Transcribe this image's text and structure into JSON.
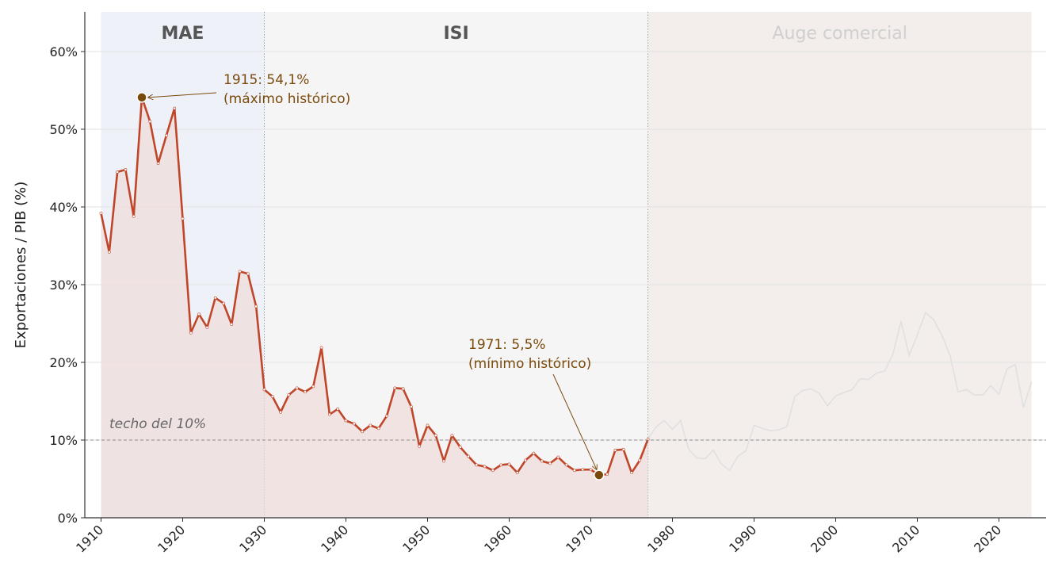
{
  "chart_data": {
    "type": "line",
    "ylabel": "Exportaciones / PIB (%)",
    "xlabel": "",
    "xlim": [
      1908,
      2026
    ],
    "ylim": [
      0,
      65
    ],
    "x_ticks": [
      1910,
      1920,
      1930,
      1940,
      1950,
      1960,
      1970,
      1980,
      1990,
      2000,
      2010,
      2020
    ],
    "y_ticks": [
      0,
      10,
      20,
      30,
      40,
      50,
      60
    ],
    "y_tick_labels": [
      "0%",
      "10%",
      "20%",
      "30%",
      "40%",
      "50%",
      "60%"
    ],
    "grid": true,
    "periods": [
      {
        "label": "MAE",
        "start": 1910,
        "end": 1930,
        "color": "#e8eef5",
        "label_color": "#555555"
      },
      {
        "label": "ISI",
        "start": 1930,
        "end": 1977,
        "color": "#f2f2f2",
        "label_color": "#555555"
      },
      {
        "label": "Auge comercial",
        "start": 1977,
        "end": 2024,
        "color": "#efe8e4",
        "label_color": "#cfcfcf"
      }
    ],
    "reference_line": {
      "y": 10,
      "label": "techo del 10%"
    },
    "annotations": [
      {
        "x": 1915,
        "y": 54.1,
        "line1": "1915: 54,1%",
        "line2": "(máximo histórico)"
      },
      {
        "x": 1971,
        "y": 5.5,
        "line1": "1971: 5,5%",
        "line2": "(mínimo histórico)"
      }
    ],
    "colors": {
      "main_line": "#c0462a",
      "fill": "#f0dcd8",
      "muted_line": "#e0e0e0",
      "annot": "#7a4a0c",
      "marker": "#7a4a0c"
    },
    "series": [
      {
        "x": [
          1910,
          1911,
          1912,
          1913,
          1914,
          1915,
          1916,
          1917,
          1918,
          1919,
          1920,
          1921,
          1922,
          1923,
          1924,
          1925,
          1926,
          1927,
          1928,
          1929,
          1930,
          1931,
          1932,
          1933,
          1934,
          1935,
          1936,
          1937,
          1938,
          1939,
          1940,
          1941,
          1942,
          1943,
          1944,
          1945,
          1946,
          1947,
          1948,
          1949,
          1950,
          1951,
          1952,
          1953,
          1954,
          1955,
          1956,
          1957,
          1958,
          1959,
          1960,
          1961,
          1962,
          1963,
          1964,
          1965,
          1966,
          1967,
          1968,
          1969,
          1970,
          1971,
          1972,
          1973,
          1974,
          1975,
          1976,
          1977
        ],
        "y": [
          39.2,
          34.2,
          44.5,
          44.8,
          38.8,
          54.1,
          51.0,
          45.6,
          49.2,
          52.7,
          38.5,
          23.8,
          26.2,
          24.5,
          28.3,
          27.6,
          24.9,
          31.7,
          31.4,
          27.2,
          16.5,
          15.6,
          13.6,
          15.8,
          16.7,
          16.2,
          16.9,
          21.9,
          13.3,
          14.0,
          12.5,
          12.1,
          11.1,
          11.9,
          11.5,
          13.1,
          16.7,
          16.6,
          14.3,
          9.2,
          11.9,
          10.6,
          7.3,
          10.6,
          9.1,
          7.9,
          6.8,
          6.6,
          6.1,
          6.8,
          6.9,
          5.8,
          7.4,
          8.3,
          7.3,
          7.0,
          7.8,
          6.8,
          6.1,
          6.2,
          6.2,
          5.5,
          5.6,
          8.7,
          8.8,
          5.8,
          7.4,
          10.1
        ]
      },
      {
        "x": [
          1977,
          1978,
          1979,
          1980,
          1981,
          1982,
          1983,
          1984,
          1985,
          1986,
          1987,
          1988,
          1989,
          1990,
          1991,
          1992,
          1993,
          1994,
          1995,
          1996,
          1997,
          1998,
          1999,
          2000,
          2001,
          2002,
          2003,
          2004,
          2005,
          2006,
          2007,
          2008,
          2009,
          2010,
          2011,
          2012,
          2013,
          2014,
          2015,
          2016,
          2017,
          2018,
          2019,
          2020,
          2021,
          2022,
          2023,
          2024
        ],
        "y": [
          10.1,
          11.7,
          12.5,
          11.4,
          12.5,
          8.8,
          7.7,
          7.6,
          8.7,
          6.9,
          6.1,
          7.9,
          8.6,
          11.9,
          11.5,
          11.2,
          11.3,
          11.7,
          15.6,
          16.4,
          16.6,
          16.0,
          14.4,
          15.7,
          16.1,
          16.5,
          17.9,
          17.8,
          18.6,
          18.9,
          21.0,
          25.3,
          20.9,
          23.5,
          26.4,
          25.5,
          23.5,
          20.9,
          16.2,
          16.5,
          15.8,
          15.8,
          17.0,
          15.9,
          19.2,
          19.7,
          14.2,
          17.5
        ]
      }
    ]
  }
}
